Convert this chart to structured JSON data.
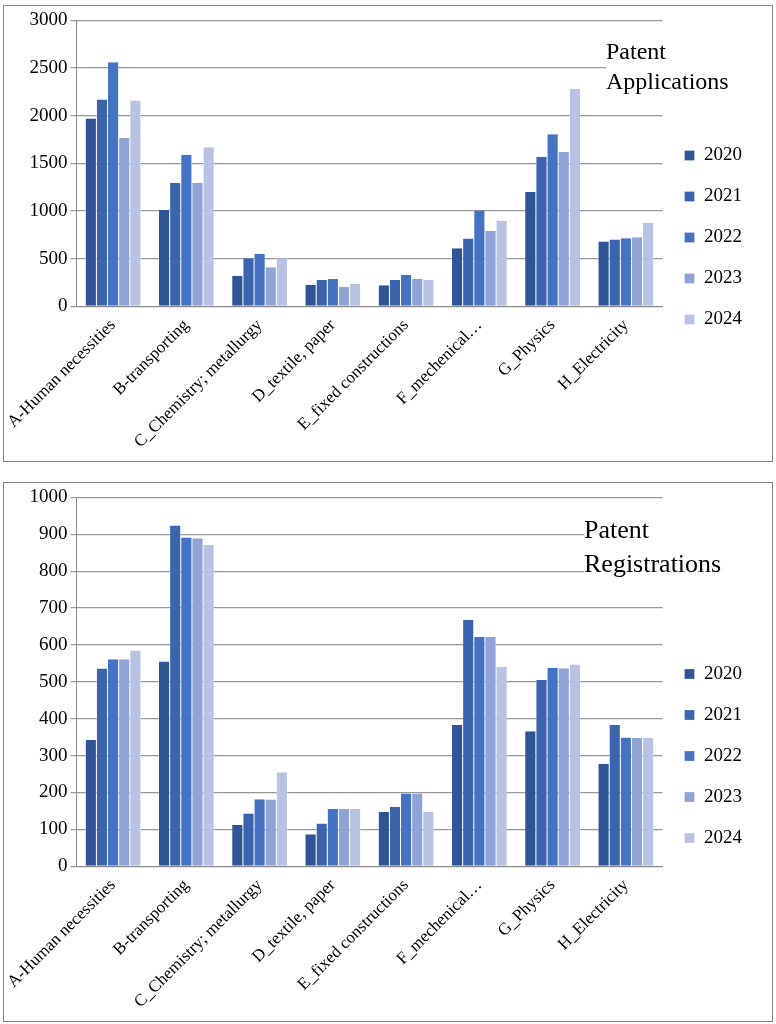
{
  "chart_data": [
    {
      "type": "bar",
      "title": "Patent Applications",
      "categories": [
        "A-Human necessities",
        "B-transporting",
        "C_Chemistry; metallurgy",
        "D_textile, paper",
        "E_fixed constructions",
        "F_mechenical…",
        "G_Physics",
        "H_Electricity"
      ],
      "series": [
        {
          "name": "2020",
          "color": "#2f5597",
          "values": [
            1970,
            1010,
            320,
            225,
            220,
            610,
            1200,
            680
          ]
        },
        {
          "name": "2021",
          "color": "#3a64ae",
          "values": [
            2170,
            1295,
            505,
            275,
            275,
            710,
            1570,
            700
          ]
        },
        {
          "name": "2022",
          "color": "#4472c4",
          "values": [
            2560,
            1590,
            550,
            285,
            330,
            1005,
            1805,
            715
          ]
        },
        {
          "name": "2023",
          "color": "#8fa3d6",
          "values": [
            1765,
            1295,
            410,
            205,
            285,
            790,
            1620,
            725
          ]
        },
        {
          "name": "2024",
          "color": "#b8c2e3",
          "values": [
            2160,
            1670,
            505,
            235,
            275,
            895,
            2280,
            875
          ]
        }
      ],
      "ylim": [
        0,
        3000
      ],
      "yticks": [
        0,
        500,
        1000,
        1500,
        2000,
        2500,
        3000
      ],
      "grid": "y",
      "legend": "right"
    },
    {
      "type": "bar",
      "title": "Patent Registrations",
      "categories": [
        "A-Human necessities",
        "B-transporting",
        "C_Chemistry; metallurgy",
        "D_textile, paper",
        "E_fixed constructions",
        "F_mechenical…",
        "G_Physics",
        "H_Electricity"
      ],
      "series": [
        {
          "name": "2020",
          "color": "#2f5597",
          "values": [
            342,
            555,
            112,
            87,
            147,
            383,
            366,
            278
          ]
        },
        {
          "name": "2021",
          "color": "#3a64ae",
          "values": [
            536,
            924,
            143,
            116,
            161,
            668,
            505,
            383
          ]
        },
        {
          "name": "2022",
          "color": "#4472c4",
          "values": [
            561,
            891,
            182,
            155,
            197,
            622,
            538,
            349
          ]
        },
        {
          "name": "2023",
          "color": "#8fa3d6",
          "values": [
            561,
            889,
            181,
            155,
            197,
            622,
            537,
            348
          ]
        },
        {
          "name": "2024",
          "color": "#b8c2e3",
          "values": [
            585,
            871,
            255,
            155,
            148,
            540,
            547,
            348
          ]
        }
      ],
      "ylim": [
        0,
        1000
      ],
      "yticks": [
        0,
        100,
        200,
        300,
        400,
        500,
        600,
        700,
        800,
        900,
        1000
      ],
      "grid": "y",
      "legend": "right"
    }
  ]
}
